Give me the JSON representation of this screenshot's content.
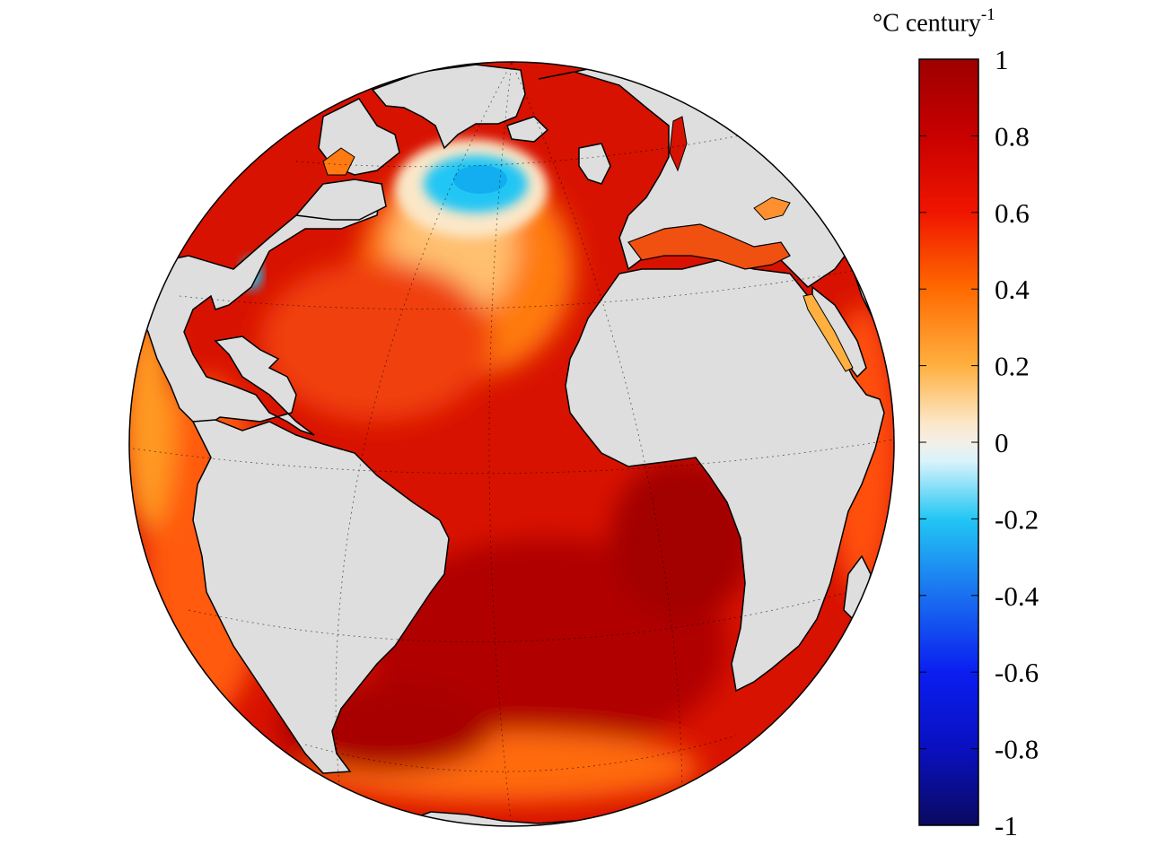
{
  "colorbar": {
    "title_main": "°C century",
    "title_exponent": "-1",
    "ticks": [
      "1",
      "0.8",
      "0.6",
      "0.4",
      "0.2",
      "0",
      "-0.2",
      "-0.4",
      "-0.6",
      "-0.8",
      "-1"
    ],
    "range": [
      -1,
      1
    ],
    "stops": [
      {
        "value": 1.0,
        "color": "#9e0000"
      },
      {
        "value": 0.8,
        "color": "#c80000"
      },
      {
        "value": 0.6,
        "color": "#f01500"
      },
      {
        "value": 0.4,
        "color": "#ff6a00"
      },
      {
        "value": 0.2,
        "color": "#ffb040"
      },
      {
        "value": 0.05,
        "color": "#fbe7c8"
      },
      {
        "value": 0.0,
        "color": "#f4efe8"
      },
      {
        "value": -0.05,
        "color": "#d8f3fb"
      },
      {
        "value": -0.2,
        "color": "#22c6f4"
      },
      {
        "value": -0.4,
        "color": "#1a70f0"
      },
      {
        "value": -0.6,
        "color": "#0a1ef0"
      },
      {
        "value": -0.8,
        "color": "#0a10c0"
      },
      {
        "value": -1.0,
        "color": "#0a0a60"
      }
    ]
  },
  "map": {
    "projection": "orthographic globe centered on the Atlantic Ocean",
    "variable": "sea surface temperature trend",
    "land_color": "#dedede",
    "ocean_dominant_color": "#d81200",
    "cooling_region": "subpolar North Atlantic south of Greenland"
  }
}
